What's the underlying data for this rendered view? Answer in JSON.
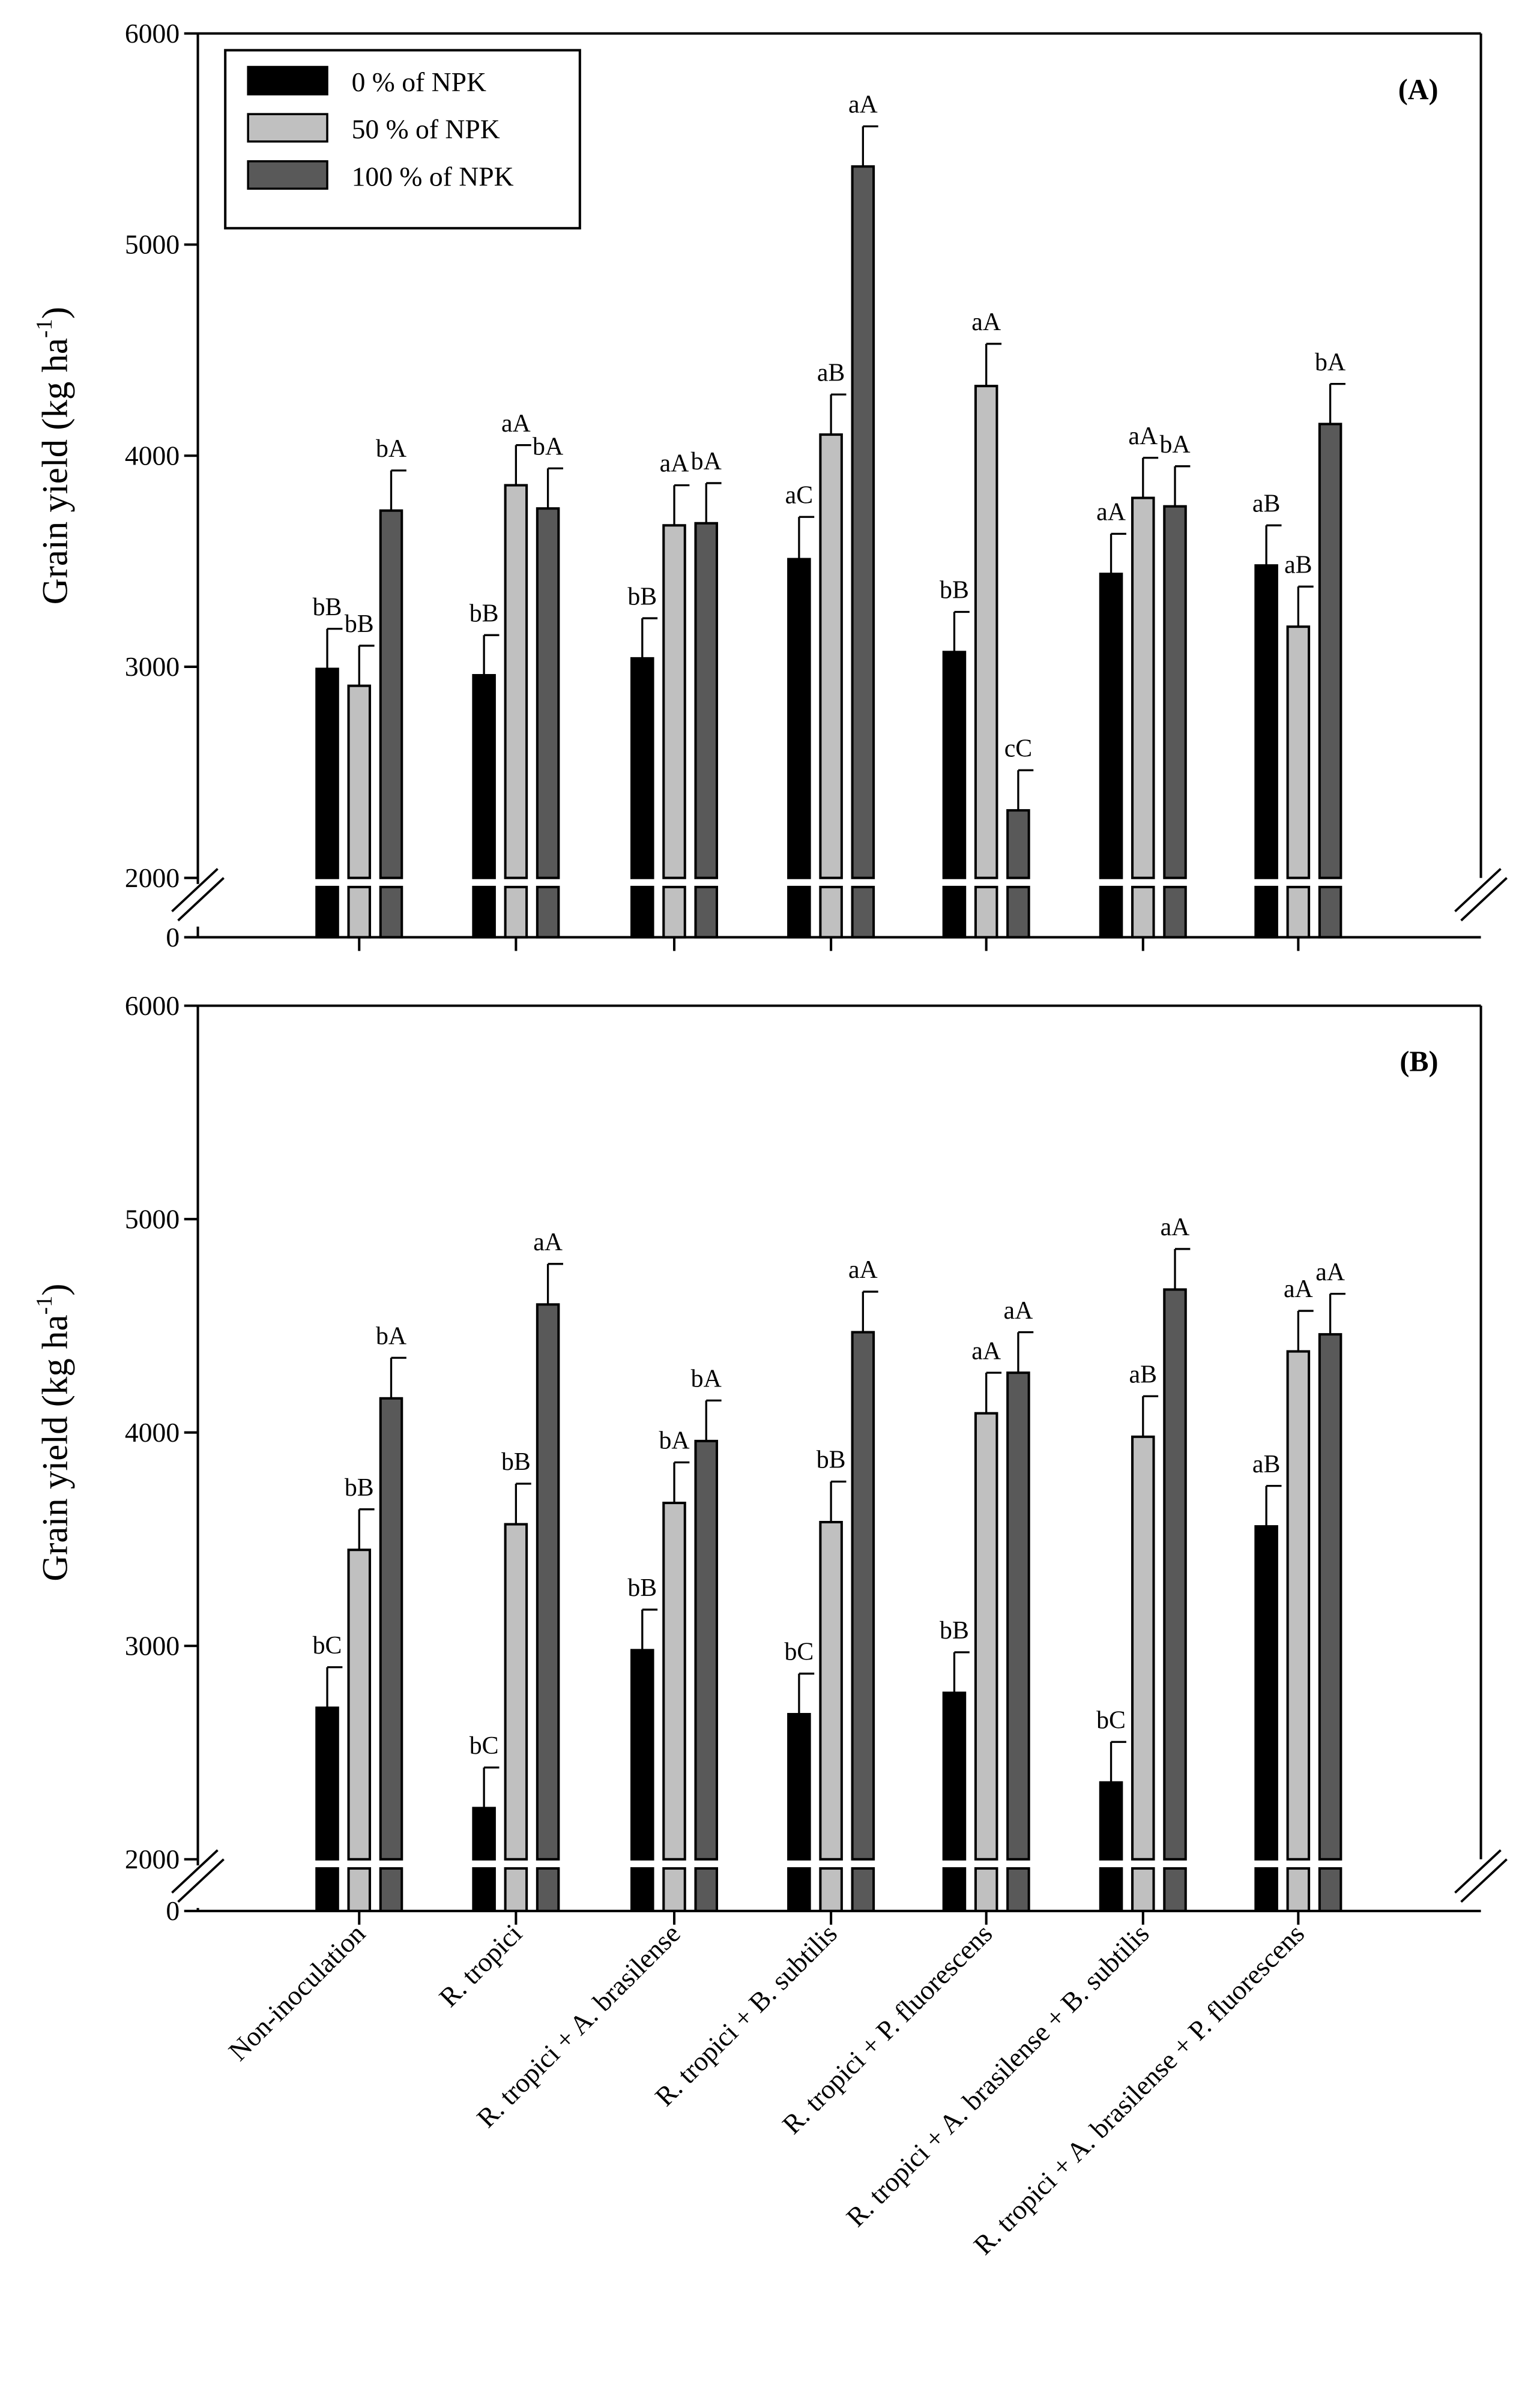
{
  "chart_data": [
    {
      "panel_label": "(A)",
      "type": "bar",
      "ylabel": "Grain yield (kg ha",
      "ylabel_sup": "-1",
      "ylim": [
        2000,
        6000
      ],
      "axis_break": {
        "lower_tick": "0",
        "break_at": 2000
      },
      "yticks": [
        "2000",
        "3000",
        "4000",
        "5000",
        "6000"
      ],
      "legend": {
        "placement": "top-left",
        "entries": [
          "0 % of NPK",
          "50 % of NPK",
          "100 % of NPK"
        ]
      },
      "categories": [
        "Non-inoculation",
        "R. tropici",
        "R. tropici + A. brasilense",
        "R. tropici + B. subtilis",
        "R. tropici + P. fluorescens",
        "R. tropici + A. brasilense + B. subtilis",
        "R. tropici + A. brasilense + P. fluorescens"
      ],
      "series": [
        {
          "name": "0 % of NPK",
          "color": "#000000",
          "values": [
            2990,
            2960,
            3040,
            3510,
            3070,
            3440,
            3480
          ],
          "errors": [
            190,
            190,
            190,
            200,
            190,
            190,
            190
          ],
          "letters": [
            "bB",
            "bB",
            "bB",
            "aC",
            "bB",
            "aA",
            "aB"
          ]
        },
        {
          "name": "50 % of NPK",
          "color": "#c0c0c0",
          "values": [
            2910,
            3860,
            3670,
            4100,
            4330,
            3800,
            3190
          ],
          "errors": [
            190,
            190,
            190,
            190,
            200,
            190,
            190
          ],
          "letters": [
            "bB",
            "aA",
            "aA",
            "aB",
            "aA",
            "aA",
            "aB"
          ]
        },
        {
          "name": "100 % of NPK",
          "color": "#595959",
          "values": [
            3740,
            3750,
            3680,
            5370,
            2320,
            3760,
            4150
          ],
          "errors": [
            190,
            190,
            190,
            190,
            190,
            190,
            190
          ],
          "letters": [
            "bA",
            "bA",
            "bA",
            "aA",
            "cC",
            "bA",
            "bA"
          ]
        }
      ]
    },
    {
      "panel_label": "(B)",
      "type": "bar",
      "ylabel": "Grain yield (kg ha",
      "ylabel_sup": "-1",
      "ylim": [
        2000,
        6000
      ],
      "axis_break": {
        "lower_tick": "0",
        "break_at": 2000
      },
      "yticks": [
        "2000",
        "3000",
        "4000",
        "5000",
        "6000"
      ],
      "categories": [
        "Non-inoculation",
        "R. tropici",
        "R. tropici + A. brasilense",
        "R. tropici + B. subtilis",
        "R. tropici + P. fluorescens",
        "R. tropici + A. brasilense + B. subtilis",
        "R. tropici + A. brasilense + P. fluorescens"
      ],
      "series": [
        {
          "name": "0 % of NPK",
          "color": "#000000",
          "values": [
            2710,
            2240,
            2980,
            2680,
            2780,
            2360,
            3560
          ],
          "errors": [
            190,
            190,
            190,
            190,
            190,
            190,
            190
          ],
          "letters": [
            "bC",
            "bC",
            "bB",
            "bC",
            "bB",
            "bC",
            "aB"
          ]
        },
        {
          "name": "50 % of NPK",
          "color": "#c0c0c0",
          "values": [
            3450,
            3570,
            3670,
            3580,
            4090,
            3980,
            4380
          ],
          "errors": [
            190,
            190,
            190,
            190,
            190,
            190,
            190
          ],
          "letters": [
            "bB",
            "bB",
            "bA",
            "bB",
            "aA",
            "aB",
            "aA"
          ]
        },
        {
          "name": "100 % of NPK",
          "color": "#595959",
          "values": [
            4160,
            4600,
            3960,
            4470,
            4280,
            4670,
            4460
          ],
          "errors": [
            190,
            190,
            190,
            190,
            190,
            190,
            190
          ],
          "letters": [
            "bA",
            "aA",
            "bA",
            "aA",
            "aA",
            "aA",
            "aA"
          ]
        }
      ]
    }
  ]
}
